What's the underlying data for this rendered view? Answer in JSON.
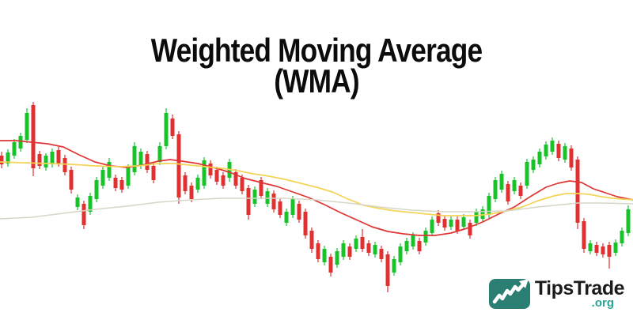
{
  "title": {
    "line1": "Weighted Moving Average",
    "line2": "(WMA)"
  },
  "logo": {
    "brand": "TipsTrade",
    "tld": ".org",
    "icon": "trend-up-chart-icon",
    "icon_bg": "#2b7e72",
    "icon_line": "#ffffff",
    "text_color": "#1c1c1a",
    "tld_color": "#2ca393"
  },
  "colors": {
    "background": "#ffffff",
    "bull": "#18c32a",
    "bear": "#e03030",
    "title": "#0c0c0c"
  },
  "chart_data": {
    "type": "candlestick",
    "title": "Weighted Moving Average (WMA)",
    "xlabel": "",
    "ylabel": "",
    "axes_visible": false,
    "grid": false,
    "legend": false,
    "coords": "pixel space of 800x400 canvas, y increases downward",
    "x_range": [
      0,
      800
    ],
    "y_range": [
      125,
      395
    ],
    "candle_width": 5,
    "candle_format": [
      "x_center",
      "wick_top",
      "body_top",
      "body_bottom",
      "wick_bottom",
      "color g=green-up r=red-down"
    ],
    "candles": [
      [
        2,
        192,
        197,
        208,
        213,
        "r"
      ],
      [
        10,
        189,
        193,
        207,
        211,
        "g"
      ],
      [
        18,
        176,
        180,
        197,
        201,
        "g"
      ],
      [
        26,
        168,
        172,
        188,
        192,
        "g"
      ],
      [
        34,
        137,
        143,
        177,
        181,
        "g"
      ],
      [
        42,
        129,
        133,
        213,
        223,
        "r"
      ],
      [
        50,
        191,
        195,
        210,
        214,
        "r"
      ],
      [
        58,
        194,
        197,
        212,
        216,
        "g"
      ],
      [
        66,
        188,
        192,
        208,
        212,
        "g"
      ],
      [
        74,
        186,
        190,
        207,
        211,
        "r"
      ],
      [
        82,
        196,
        200,
        218,
        222,
        "r"
      ],
      [
        90,
        211,
        215,
        240,
        245,
        "r"
      ],
      [
        98,
        246,
        250,
        262,
        266,
        "g"
      ],
      [
        106,
        254,
        258,
        285,
        290,
        "r"
      ],
      [
        114,
        244,
        248,
        268,
        272,
        "g"
      ],
      [
        122,
        224,
        228,
        252,
        256,
        "g"
      ],
      [
        130,
        210,
        215,
        235,
        239,
        "g"
      ],
      [
        138,
        200,
        205,
        225,
        229,
        "g"
      ],
      [
        146,
        221,
        225,
        238,
        242,
        "r"
      ],
      [
        154,
        224,
        228,
        240,
        244,
        "r"
      ],
      [
        162,
        208,
        212,
        235,
        239,
        "g"
      ],
      [
        170,
        180,
        185,
        218,
        222,
        "g"
      ],
      [
        178,
        188,
        192,
        210,
        214,
        "g"
      ],
      [
        186,
        191,
        195,
        215,
        219,
        "r"
      ],
      [
        194,
        206,
        210,
        228,
        232,
        "r"
      ],
      [
        202,
        180,
        185,
        205,
        209,
        "g"
      ],
      [
        210,
        137,
        143,
        185,
        189,
        "g"
      ],
      [
        218,
        145,
        150,
        172,
        176,
        "r"
      ],
      [
        226,
        166,
        170,
        250,
        258,
        "r"
      ],
      [
        234,
        218,
        222,
        242,
        246,
        "r"
      ],
      [
        242,
        231,
        235,
        252,
        256,
        "r"
      ],
      [
        250,
        221,
        225,
        240,
        244,
        "g"
      ],
      [
        258,
        199,
        203,
        235,
        239,
        "g"
      ],
      [
        266,
        203,
        207,
        222,
        226,
        "r"
      ],
      [
        274,
        211,
        215,
        230,
        234,
        "r"
      ],
      [
        282,
        218,
        222,
        235,
        239,
        "r"
      ],
      [
        290,
        201,
        205,
        225,
        230,
        "g"
      ],
      [
        298,
        214,
        218,
        235,
        239,
        "r"
      ],
      [
        306,
        221,
        225,
        242,
        246,
        "r"
      ],
      [
        314,
        234,
        238,
        272,
        278,
        "r"
      ],
      [
        322,
        236,
        240,
        258,
        262,
        "g"
      ],
      [
        330,
        224,
        228,
        248,
        252,
        "r"
      ],
      [
        338,
        238,
        242,
        258,
        262,
        "g"
      ],
      [
        346,
        241,
        245,
        265,
        269,
        "r"
      ],
      [
        354,
        251,
        255,
        272,
        276,
        "r"
      ],
      [
        362,
        264,
        268,
        282,
        286,
        "g"
      ],
      [
        370,
        248,
        252,
        272,
        276,
        "g"
      ],
      [
        378,
        254,
        258,
        278,
        282,
        "r"
      ],
      [
        386,
        264,
        268,
        298,
        302,
        "r"
      ],
      [
        394,
        288,
        292,
        315,
        320,
        "r"
      ],
      [
        402,
        304,
        308,
        328,
        332,
        "r"
      ],
      [
        410,
        311,
        315,
        332,
        336,
        "g"
      ],
      [
        418,
        321,
        325,
        345,
        350,
        "r"
      ],
      [
        426,
        314,
        318,
        335,
        339,
        "g"
      ],
      [
        434,
        304,
        308,
        325,
        329,
        "g"
      ],
      [
        442,
        308,
        312,
        325,
        329,
        "r"
      ],
      [
        450,
        298,
        302,
        315,
        319,
        "g"
      ],
      [
        458,
        290,
        300,
        315,
        319,
        "r"
      ],
      [
        466,
        304,
        308,
        320,
        324,
        "r"
      ],
      [
        474,
        306,
        310,
        322,
        326,
        "g"
      ],
      [
        482,
        311,
        315,
        328,
        332,
        "r"
      ],
      [
        490,
        318,
        322,
        362,
        370,
        "r"
      ],
      [
        498,
        324,
        328,
        345,
        349,
        "g"
      ],
      [
        506,
        308,
        312,
        332,
        336,
        "g"
      ],
      [
        514,
        301,
        305,
        318,
        322,
        "g"
      ],
      [
        522,
        294,
        298,
        312,
        316,
        "g"
      ],
      [
        530,
        301,
        305,
        318,
        322,
        "r"
      ],
      [
        538,
        288,
        292,
        307,
        311,
        "g"
      ],
      [
        546,
        274,
        278,
        295,
        299,
        "g"
      ],
      [
        554,
        266,
        270,
        282,
        286,
        "r"
      ],
      [
        562,
        273,
        277,
        288,
        292,
        "r"
      ],
      [
        570,
        274,
        278,
        287,
        291,
        "g"
      ],
      [
        578,
        274,
        278,
        292,
        296,
        "r"
      ],
      [
        586,
        271,
        275,
        287,
        291,
        "g"
      ],
      [
        594,
        278,
        282,
        298,
        302,
        "r"
      ],
      [
        602,
        264,
        268,
        282,
        286,
        "g"
      ],
      [
        610,
        261,
        265,
        277,
        281,
        "g"
      ],
      [
        618,
        244,
        248,
        272,
        276,
        "g"
      ],
      [
        626,
        224,
        228,
        252,
        256,
        "g"
      ],
      [
        634,
        216,
        220,
        240,
        244,
        "g"
      ],
      [
        642,
        229,
        233,
        255,
        259,
        "r"
      ],
      [
        650,
        224,
        228,
        242,
        246,
        "g"
      ],
      [
        658,
        231,
        235,
        248,
        252,
        "r"
      ],
      [
        666,
        201,
        205,
        235,
        239,
        "g"
      ],
      [
        674,
        198,
        202,
        215,
        219,
        "g"
      ],
      [
        682,
        188,
        192,
        208,
        212,
        "g"
      ],
      [
        690,
        179,
        183,
        198,
        202,
        "g"
      ],
      [
        698,
        174,
        178,
        192,
        196,
        "g"
      ],
      [
        706,
        178,
        182,
        200,
        204,
        "r"
      ],
      [
        714,
        181,
        185,
        202,
        206,
        "g"
      ],
      [
        722,
        184,
        188,
        212,
        216,
        "r"
      ],
      [
        730,
        198,
        202,
        282,
        290,
        "r"
      ],
      [
        738,
        276,
        280,
        315,
        320,
        "r"
      ],
      [
        746,
        304,
        308,
        318,
        322,
        "g"
      ],
      [
        754,
        306,
        310,
        320,
        324,
        "r"
      ],
      [
        762,
        308,
        312,
        322,
        326,
        "r"
      ],
      [
        770,
        306,
        310,
        325,
        340,
        "r"
      ],
      [
        778,
        303,
        307,
        320,
        324,
        "g"
      ],
      [
        786,
        288,
        292,
        308,
        312,
        "g"
      ],
      [
        794,
        260,
        265,
        295,
        299,
        "g"
      ]
    ],
    "overlays": [
      {
        "name": "wma-fast-red-line",
        "color": "#e13434",
        "stroke_width": 1.7,
        "points": [
          [
            0,
            178
          ],
          [
            20,
            178
          ],
          [
            40,
            180
          ],
          [
            60,
            182
          ],
          [
            80,
            186
          ],
          [
            100,
            196
          ],
          [
            120,
            205
          ],
          [
            140,
            210
          ],
          [
            160,
            212
          ],
          [
            180,
            209
          ],
          [
            200,
            204
          ],
          [
            215,
            202
          ],
          [
            230,
            204
          ],
          [
            250,
            207
          ],
          [
            270,
            212
          ],
          [
            290,
            218
          ],
          [
            310,
            226
          ],
          [
            330,
            231
          ],
          [
            350,
            236
          ],
          [
            370,
            243
          ],
          [
            390,
            250
          ],
          [
            410,
            259
          ],
          [
            430,
            269
          ],
          [
            450,
            278
          ],
          [
            470,
            287
          ],
          [
            490,
            293
          ],
          [
            510,
            296
          ],
          [
            530,
            298
          ],
          [
            550,
            298
          ],
          [
            570,
            295
          ],
          [
            590,
            289
          ],
          [
            610,
            281
          ],
          [
            630,
            271
          ],
          [
            650,
            262
          ],
          [
            670,
            249
          ],
          [
            690,
            237
          ],
          [
            705,
            232
          ],
          [
            720,
            229
          ],
          [
            735,
            231
          ],
          [
            750,
            239
          ],
          [
            765,
            244
          ],
          [
            780,
            249
          ],
          [
            800,
            253
          ]
        ]
      },
      {
        "name": "wma-medium-yellow-line",
        "color": "#f3d455",
        "stroke_width": 1.7,
        "points": [
          [
            0,
            205
          ],
          [
            30,
            206
          ],
          [
            60,
            207
          ],
          [
            90,
            208
          ],
          [
            120,
            210
          ],
          [
            150,
            211
          ],
          [
            175,
            210
          ],
          [
            200,
            207
          ],
          [
            220,
            207
          ],
          [
            240,
            209
          ],
          [
            260,
            211
          ],
          [
            280,
            213
          ],
          [
            300,
            216
          ],
          [
            320,
            220
          ],
          [
            340,
            223
          ],
          [
            360,
            227
          ],
          [
            380,
            232
          ],
          [
            400,
            237
          ],
          [
            420,
            243
          ],
          [
            440,
            252
          ],
          [
            460,
            260
          ],
          [
            480,
            264
          ],
          [
            500,
            267
          ],
          [
            520,
            269
          ],
          [
            540,
            271
          ],
          [
            560,
            273
          ],
          [
            580,
            273
          ],
          [
            600,
            273
          ],
          [
            620,
            271
          ],
          [
            640,
            267
          ],
          [
            660,
            262
          ],
          [
            680,
            254
          ],
          [
            700,
            248
          ],
          [
            715,
            245
          ],
          [
            730,
            245
          ],
          [
            745,
            246
          ],
          [
            760,
            249
          ],
          [
            775,
            251
          ],
          [
            800,
            253
          ]
        ]
      },
      {
        "name": "wma-slow-gray-line",
        "color": "#d6d6c8",
        "stroke_width": 1.5,
        "points": [
          [
            0,
            277
          ],
          [
            40,
            275
          ],
          [
            80,
            270
          ],
          [
            120,
            265
          ],
          [
            160,
            261
          ],
          [
            200,
            256
          ],
          [
            240,
            253
          ],
          [
            280,
            251
          ],
          [
            320,
            251
          ],
          [
            360,
            251
          ],
          [
            400,
            253
          ],
          [
            440,
            257
          ],
          [
            480,
            262
          ],
          [
            520,
            266
          ],
          [
            560,
            268
          ],
          [
            600,
            268
          ],
          [
            640,
            267
          ],
          [
            680,
            262
          ],
          [
            700,
            260
          ],
          [
            730,
            257
          ],
          [
            760,
            257
          ],
          [
            800,
            258
          ]
        ]
      }
    ]
  }
}
